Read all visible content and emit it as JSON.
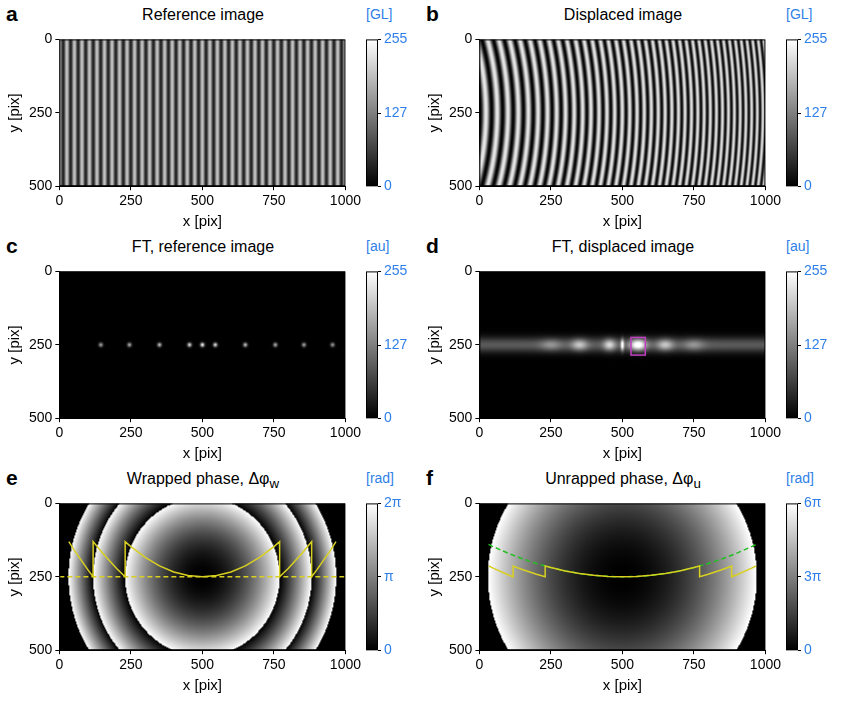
{
  "displacement": {
    "center": [
      500,
      250
    ],
    "radius_2pi": 270,
    "mask_radius": 470
  },
  "chart_data": [
    {
      "panel": "a",
      "type": "heatmap",
      "title": "Reference image",
      "x_label": "x [pix]",
      "y_label": "y [pix]",
      "xlim": [
        0,
        1000
      ],
      "ylim": [
        500,
        0
      ],
      "xticks": [
        0,
        250,
        500,
        750,
        1000
      ],
      "yticks": [
        0,
        250,
        500
      ],
      "image": {
        "kind": "fringes",
        "period": 26.3,
        "min": 30,
        "max": 200,
        "displaced": false
      },
      "colorbar": {
        "label": "[GL]",
        "range": [
          0,
          255
        ],
        "ticks": [
          0,
          127,
          255
        ],
        "color": "#2f7fe8"
      }
    },
    {
      "panel": "b",
      "type": "heatmap",
      "title": "Displaced image",
      "x_label": "x [pix]",
      "y_label": "y [pix]",
      "xlim": [
        0,
        1000
      ],
      "ylim": [
        500,
        0
      ],
      "xticks": [
        0,
        250,
        500,
        750,
        1000
      ],
      "yticks": [
        0,
        250,
        500
      ],
      "image": {
        "kind": "fringes",
        "period": 26.3,
        "min": 0,
        "max": 235,
        "displaced": true
      },
      "colorbar": {
        "label": "[GL]",
        "range": [
          0,
          255
        ],
        "ticks": [
          0,
          127,
          255
        ],
        "color": "#2f7fe8"
      }
    },
    {
      "panel": "c",
      "type": "heatmap",
      "title": "FT, reference image",
      "x_label": "x [pix]",
      "y_label": "y [pix]",
      "xlim": [
        0,
        1000
      ],
      "ylim": [
        500,
        0
      ],
      "xticks": [
        0,
        250,
        500,
        750,
        1000
      ],
      "yticks": [
        0,
        250,
        500
      ],
      "image": {
        "kind": "spectrum",
        "y": 250,
        "peaks": [
          {
            "x": 145,
            "level": 170
          },
          {
            "x": 245,
            "level": 180
          },
          {
            "x": 350,
            "level": 200
          },
          {
            "x": 455,
            "level": 230
          },
          {
            "x": 500,
            "level": 255
          },
          {
            "x": 545,
            "level": 230
          },
          {
            "x": 650,
            "level": 200
          },
          {
            "x": 755,
            "level": 180
          },
          {
            "x": 855,
            "level": 170
          },
          {
            "x": 955,
            "level": 160
          }
        ]
      },
      "colorbar": {
        "label": "[au]",
        "range": [
          0,
          255
        ],
        "ticks": [
          0,
          127,
          255
        ],
        "color": "#2f7fe8"
      }
    },
    {
      "panel": "d",
      "type": "heatmap",
      "title": "FT, displaced image",
      "x_label": "x [pix]",
      "y_label": "y [pix]",
      "xlim": [
        0,
        1000
      ],
      "ylim": [
        500,
        0
      ],
      "xticks": [
        0,
        250,
        500,
        750,
        1000
      ],
      "yticks": [
        0,
        250,
        500
      ],
      "image": {
        "kind": "bands",
        "y": 250,
        "glow": 90,
        "bands": [
          {
            "x": 250,
            "width": 50,
            "level": 60
          },
          {
            "x": 350,
            "width": 40,
            "level": 110
          },
          {
            "x": 455,
            "width": 30,
            "level": 130
          },
          {
            "x": 500,
            "width": 8,
            "level": 200
          },
          {
            "x": 555,
            "width": 40,
            "level": 190
          },
          {
            "x": 650,
            "width": 40,
            "level": 110
          },
          {
            "x": 750,
            "width": 50,
            "level": 60
          }
        ]
      },
      "box": {
        "x": [
          530,
          580
        ],
        "y": [
          225,
          285
        ],
        "color": "#c040c0"
      },
      "colorbar": {
        "label": "[au]",
        "range": [
          0,
          255
        ],
        "ticks": [
          0,
          127,
          255
        ],
        "color": "#2f7fe8"
      }
    },
    {
      "panel": "e",
      "type": "heatmap",
      "title": "Wrapped phase, Δφ",
      "title_sub": "w",
      "x_label": "x [pix]",
      "y_label": "y [pix]",
      "xlim": [
        0,
        1000
      ],
      "ylim": [
        500,
        0
      ],
      "xticks": [
        0,
        250,
        500,
        750,
        1000
      ],
      "yticks": [
        0,
        250,
        500
      ],
      "image": {
        "kind": "wrapped_phase"
      },
      "series": [
        {
          "color": "#d8d020",
          "line_style": "dashed",
          "x": [
            0,
            1000
          ],
          "values": [
            250,
            250
          ]
        },
        {
          "color": "#d8d020",
          "line_style": "solid",
          "x": [
            33,
            50,
            100,
            118,
            118,
            150,
            200,
            230,
            230,
            250,
            300,
            350,
            400,
            450,
            500,
            550,
            600,
            650,
            700,
            750,
            770,
            770,
            800,
            850,
            882,
            882,
            900,
            950,
            967
          ],
          "values": [
            130,
            156.6,
            226.6,
            250,
            130,
            168.4,
            221.8,
            250,
            130,
            147.1,
            184.1,
            212.9,
            233.5,
            245.9,
            250,
            245.9,
            233.5,
            212.9,
            184.1,
            147.1,
            130,
            250,
            221.8,
            168.4,
            130,
            250,
            226.6,
            156.6,
            130
          ]
        }
      ],
      "colorbar": {
        "label": "[rad]",
        "range": [
          0,
          6.2832
        ],
        "ticks": [
          0,
          {
            "value": 3.1416,
            "label": "π"
          },
          {
            "value": 6.2832,
            "label": "2π"
          }
        ],
        "color": "#2f7fe8"
      }
    },
    {
      "panel": "f",
      "type": "heatmap",
      "title": "Unrapped phase, Δφ",
      "title_sub": "u",
      "x_label": "x [pix]",
      "y_label": "y [pix]",
      "xlim": [
        0,
        1000
      ],
      "ylim": [
        500,
        0
      ],
      "xticks": [
        0,
        250,
        500,
        750,
        1000
      ],
      "yticks": [
        0,
        250,
        500
      ],
      "image": {
        "kind": "unwrapped_phase"
      },
      "series": [
        {
          "color": "#d8d020",
          "line_style": "solid",
          "x": [
            33,
            50,
            100,
            118,
            118,
            150,
            200,
            230,
            230,
            250,
            300,
            350,
            400,
            450,
            500,
            550,
            600,
            650,
            700,
            750,
            770,
            770,
            800,
            850,
            882,
            882,
            900,
            950,
            967
          ],
          "values": [
            213.3,
            221.5,
            242.8,
            250,
            213.3,
            225.1,
            241.4,
            250,
            213.3,
            218.6,
            229.9,
            238.7,
            245.0,
            248.7,
            250,
            248.7,
            245.0,
            238.7,
            229.9,
            218.6,
            213.3,
            250,
            241.4,
            225.1,
            213.3,
            250,
            242.8,
            221.5,
            213.3
          ]
        },
        {
          "color": "#20c020",
          "line_style": "dashed",
          "x": [
            32,
            50,
            100,
            150,
            200,
            250,
            300,
            350,
            400,
            450,
            500,
            550,
            600,
            650,
            700,
            750,
            800,
            850,
            900,
            950,
            968
          ],
          "values": [
            139.8,
            148.1,
            169.5,
            188.4,
            204.7,
            218.6,
            229.9,
            238.7,
            245.0,
            248.7,
            250,
            248.7,
            245.0,
            238.7,
            229.9,
            218.6,
            204.7,
            188.4,
            169.5,
            148.1,
            139.8
          ]
        }
      ],
      "colorbar": {
        "label": "[rad]",
        "range": [
          0,
          18.8496
        ],
        "ticks": [
          0,
          {
            "value": 9.4248,
            "label": "3π"
          },
          {
            "value": 18.8496,
            "label": "6π"
          }
        ],
        "color": "#2f7fe8"
      }
    }
  ]
}
